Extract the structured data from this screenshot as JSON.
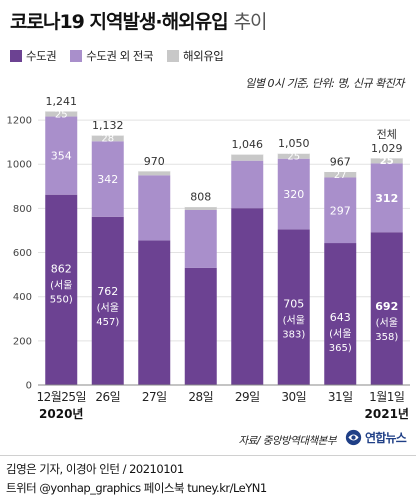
{
  "title": {
    "main": "코로나19 지역발생·해외유입",
    "sub": "추이"
  },
  "legend": [
    {
      "label": "수도권",
      "color": "#6c4292"
    },
    {
      "label": "수도권 외 전국",
      "color": "#a98fcb"
    },
    {
      "label": "해외유입",
      "color": "#c8c8c8"
    }
  ],
  "note": "일별 0시 기준, 단위: 명, 신규 확진자",
  "source": "자료/ 중앙방역대책본부",
  "logo": "연합뉴스",
  "credit": "김영은 기자, 이경아 인턴 / 20210101",
  "social": "트위터 @yonhap_graphics  페이스북 tuney.kr/LeYN1",
  "chart_data": {
    "type": "bar",
    "stacked": true,
    "categories": [
      "12월25일",
      "26일",
      "27일",
      "28일",
      "29일",
      "30일",
      "31일",
      "1월1일"
    ],
    "year_labels": [
      {
        "text": "2020년",
        "category_index": 0
      },
      {
        "text": "2021년",
        "category_index": 7
      }
    ],
    "series": [
      {
        "name": "수도권",
        "color": "#6c4292",
        "values": [
          862,
          762,
          655,
          531,
          801,
          705,
          643,
          692
        ]
      },
      {
        "name": "수도권 외 전국",
        "color": "#a98fcb",
        "values": [
          354,
          342,
          295,
          262,
          215,
          320,
          297,
          312
        ]
      },
      {
        "name": "해외유입",
        "color": "#c8c8c8",
        "values": [
          25,
          28,
          20,
          15,
          30,
          25,
          27,
          25
        ]
      }
    ],
    "totals": [
      "1,241",
      "1,132",
      "970",
      "808",
      "1,046",
      "1,050",
      "967",
      "1,029"
    ],
    "total_prefix": {
      "category_index": 7,
      "text": "전체"
    },
    "bar_labels": {
      "수도권": [
        "862",
        "762",
        "",
        "",
        "",
        "705",
        "643",
        "692"
      ],
      "수도권 외 전국": [
        "354",
        "342",
        "",
        "",
        "",
        "320",
        "297",
        "312"
      ],
      "해외유입": [
        "25",
        "28",
        "",
        "",
        "",
        "25",
        "27",
        "25"
      ]
    },
    "seoul_labels": [
      "(서울\n550)",
      "(서울\n457)",
      "",
      "",
      "",
      "(서울\n383)",
      "(서울\n365)",
      "(서울\n358)"
    ],
    "ylim": [
      0,
      1300
    ],
    "yticks": [
      0,
      200,
      400,
      600,
      800,
      1000,
      1200
    ],
    "grid": true
  }
}
